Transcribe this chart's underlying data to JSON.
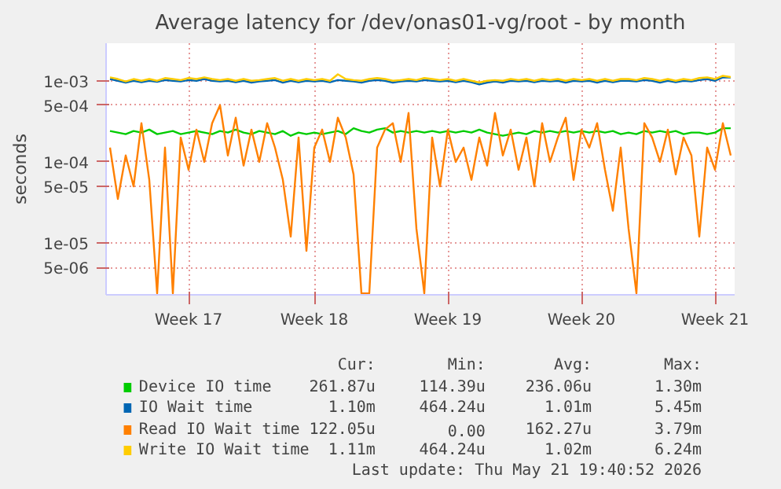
{
  "chart_data": {
    "type": "line",
    "title": "Average latency for /dev/onas01-vg/root - by month",
    "ylabel": "seconds",
    "log": "y",
    "grid": true,
    "legend": "bottom",
    "line_style": "solid",
    "marker": "none",
    "categories": [
      null,
      null,
      null,
      null,
      null,
      null,
      null,
      null,
      null,
      null,
      "Week 17",
      null,
      null,
      null,
      null,
      null,
      null,
      null,
      null,
      null,
      null,
      null,
      null,
      null,
      null,
      null,
      "Week 18",
      null,
      null,
      null,
      null,
      null,
      null,
      null,
      null,
      null,
      null,
      null,
      null,
      null,
      null,
      null,
      null,
      "Week 19",
      null,
      null,
      null,
      null,
      null,
      null,
      null,
      null,
      null,
      null,
      null,
      null,
      null,
      null,
      null,
      null,
      "Week 20",
      null,
      null,
      null,
      null,
      null,
      null,
      null,
      null,
      null,
      null,
      null,
      null,
      null,
      null,
      null,
      null,
      "Week 21",
      null,
      null
    ],
    "ylim": [
      2.3e-06,
      0.0029
    ],
    "yticks": [
      {
        "value": 5e-06,
        "label": "5e-06"
      },
      {
        "value": 1e-05,
        "label": "1e-05"
      },
      {
        "value": 5e-05,
        "label": "5e-05"
      },
      {
        "value": 0.0001,
        "label": "1e-04"
      },
      {
        "value": 0.0005,
        "label": "5e-04"
      },
      {
        "value": 0.001,
        "label": "1e-03"
      }
    ],
    "series": [
      {
        "name": "Device IO time",
        "color": "#00cc00",
        "values": [
          0.00024,
          0.00023,
          0.00022,
          0.00024,
          0.00023,
          0.00025,
          0.00022,
          0.00023,
          0.00024,
          0.00022,
          0.00023,
          0.00024,
          0.00023,
          0.00022,
          0.00024,
          0.00023,
          0.00025,
          0.00023,
          0.00022,
          0.00024,
          0.00023,
          0.00022,
          0.00024,
          0.00021,
          0.00023,
          0.00022,
          0.00023,
          0.00022,
          0.00023,
          0.00024,
          0.00022,
          0.00026,
          0.00024,
          0.00023,
          0.00025,
          0.00026,
          0.00023,
          0.00024,
          0.00023,
          0.00024,
          0.00023,
          0.00024,
          0.00023,
          0.00024,
          0.00023,
          0.00024,
          0.00023,
          0.00025,
          0.00023,
          0.00022,
          0.00021,
          0.00022,
          0.00023,
          0.00022,
          0.00024,
          0.00023,
          0.00024,
          0.00023,
          0.00024,
          0.00023,
          0.00024,
          0.00023,
          0.00024,
          0.00023,
          0.00024,
          0.00022,
          0.00023,
          0.00022,
          0.00024,
          0.00023,
          0.00024,
          0.00023,
          0.00024,
          0.00022,
          0.00023,
          0.00023,
          0.00022,
          0.00023,
          0.00026,
          0.00026
        ]
      },
      {
        "name": "IO Wait time",
        "color": "#0066b3",
        "values": [
          0.00105,
          0.001,
          0.00095,
          0.001,
          0.00096,
          0.001,
          0.00097,
          0.00102,
          0.001,
          0.00098,
          0.00102,
          0.001,
          0.00105,
          0.001,
          0.00098,
          0.001,
          0.00096,
          0.001,
          0.00095,
          0.00098,
          0.001,
          0.00102,
          0.00095,
          0.001,
          0.00096,
          0.001,
          0.00098,
          0.001,
          0.00096,
          0.00102,
          0.001,
          0.00098,
          0.00095,
          0.001,
          0.00102,
          0.001,
          0.00095,
          0.00098,
          0.001,
          0.00098,
          0.00102,
          0.001,
          0.00098,
          0.001,
          0.00096,
          0.001,
          0.00096,
          0.0009,
          0.00095,
          0.00098,
          0.00095,
          0.001,
          0.00098,
          0.001,
          0.00096,
          0.001,
          0.00098,
          0.001,
          0.00095,
          0.001,
          0.00098,
          0.001,
          0.00095,
          0.001,
          0.00096,
          0.001,
          0.001,
          0.00098,
          0.00102,
          0.001,
          0.00095,
          0.001,
          0.00096,
          0.001,
          0.00098,
          0.00102,
          0.00105,
          0.001,
          0.0011,
          0.0011
        ]
      },
      {
        "name": "Read IO Wait time",
        "color": "#ff8000",
        "values": [
          0.00015,
          3.5e-05,
          0.00012,
          5e-05,
          0.0003,
          6e-05,
          2.4e-06,
          0.00015,
          2.4e-06,
          0.0002,
          8e-05,
          0.00025,
          0.0001,
          0.0003,
          0.0005,
          0.00012,
          0.00035,
          9e-05,
          0.00025,
          0.0001,
          0.0003,
          0.00015,
          6e-05,
          1.2e-05,
          0.0002,
          8e-06,
          0.00015,
          0.00025,
          0.0001,
          0.00035,
          0.0002,
          7e-05,
          2.4e-06,
          2.4e-06,
          0.00015,
          0.00025,
          0.0003,
          0.0001,
          0.0004,
          1.5e-05,
          2.4e-06,
          0.0002,
          5e-05,
          0.00025,
          0.0001,
          0.00015,
          6e-05,
          0.0002,
          9e-05,
          0.0004,
          0.00012,
          0.00025,
          8e-05,
          0.0002,
          5e-05,
          0.0003,
          0.0001,
          0.0002,
          0.00035,
          6e-05,
          0.00025,
          0.00015,
          0.0003,
          8e-05,
          2.5e-05,
          0.00015,
          1.5e-05,
          2.4e-06,
          0.0003,
          0.0002,
          0.0001,
          0.00025,
          7e-05,
          0.0002,
          0.00012,
          1.2e-05,
          0.00015,
          8e-05,
          0.0003,
          0.00012
        ]
      },
      {
        "name": "Write IO Wait time",
        "color": "#ffcc00",
        "values": [
          0.0011,
          0.00105,
          0.00098,
          0.00105,
          0.001,
          0.00105,
          0.001,
          0.00108,
          0.00105,
          0.00102,
          0.00108,
          0.00105,
          0.0011,
          0.00105,
          0.00102,
          0.00105,
          0.001,
          0.00105,
          0.001,
          0.00102,
          0.00105,
          0.00108,
          0.001,
          0.00105,
          0.001,
          0.00105,
          0.00102,
          0.00105,
          0.001,
          0.0012,
          0.00105,
          0.00102,
          0.001,
          0.00105,
          0.00108,
          0.00105,
          0.001,
          0.00102,
          0.00105,
          0.00102,
          0.00108,
          0.00105,
          0.00102,
          0.00105,
          0.001,
          0.00105,
          0.001,
          0.00095,
          0.001,
          0.00102,
          0.001,
          0.00105,
          0.00102,
          0.00105,
          0.001,
          0.00105,
          0.00102,
          0.00105,
          0.001,
          0.00105,
          0.00102,
          0.00105,
          0.001,
          0.00105,
          0.001,
          0.00105,
          0.00105,
          0.00102,
          0.00108,
          0.00105,
          0.001,
          0.00105,
          0.001,
          0.00105,
          0.00102,
          0.00108,
          0.0011,
          0.00105,
          0.00115,
          0.00111
        ]
      }
    ],
    "annotations": [
      "Cur:",
      "Min:",
      "Avg:",
      "Max:",
      "261.87u",
      "114.39u",
      "236.06u",
      "1.30m",
      "1.10m",
      "464.24u",
      "1.01m",
      "5.45m",
      "122.05u",
      "0.00",
      "162.27u",
      "3.79m",
      "1.11m",
      "464.24u",
      "1.02m",
      "6.24m",
      "Last update: Thu May 21 19:40:52 2026"
    ]
  }
}
